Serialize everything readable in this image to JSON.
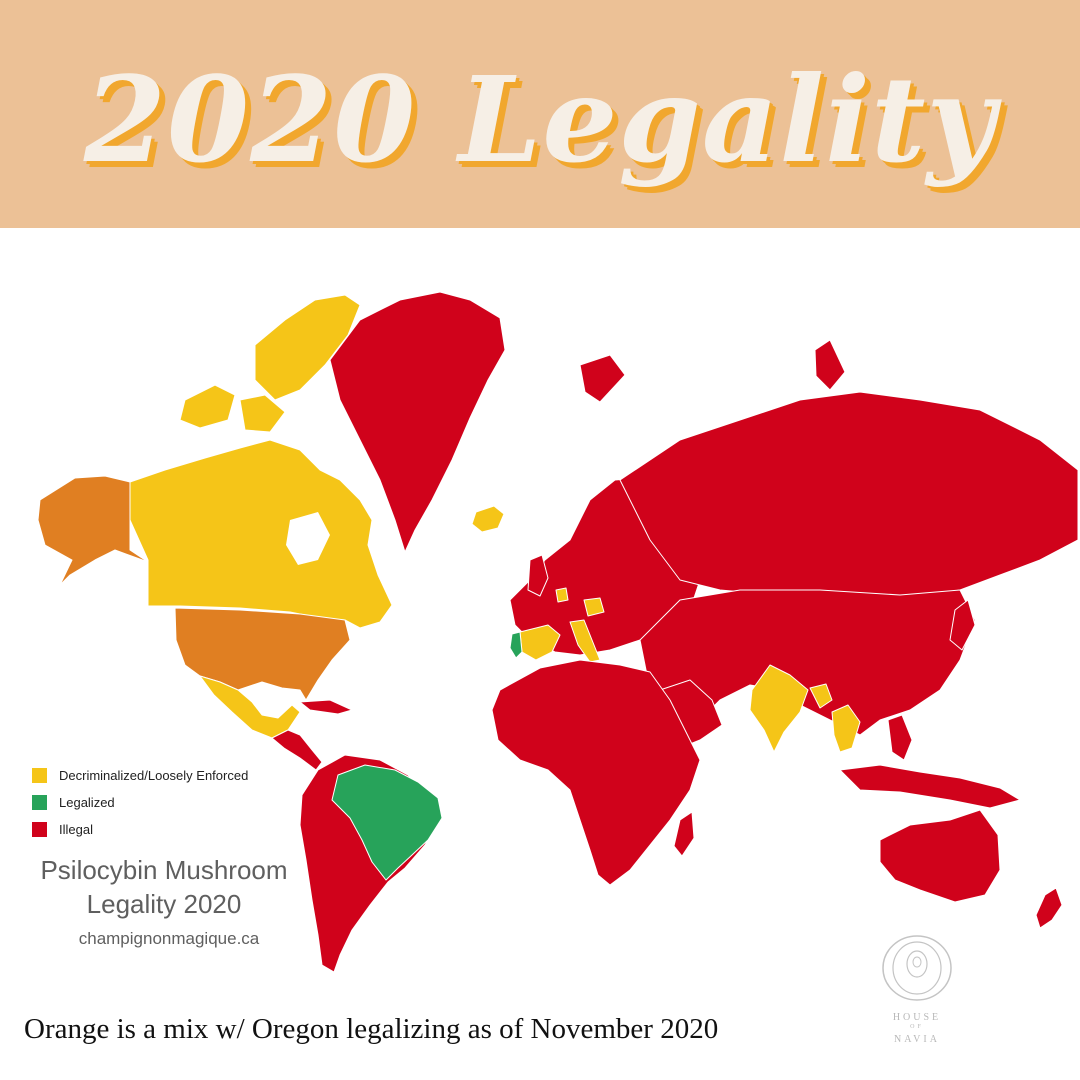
{
  "banner": {
    "title": "2020 Legality"
  },
  "map": {
    "legend": [
      {
        "label": "Decriminalized/Loosely Enforced",
        "color": "#f5c518"
      },
      {
        "label": "Legalized",
        "color": "#27a35a"
      },
      {
        "label": "Illegal",
        "color": "#d0021b"
      }
    ],
    "other_color": "#e07f22",
    "title_line1": "Psilocybin Mushroom",
    "title_line2": "Legality 2020",
    "source": "champignonmagique.ca"
  },
  "caption": "Orange is a mix w/ Oregon legalizing as of November 2020",
  "logo": {
    "line1": "HOUSE",
    "line2": "OF",
    "line3": "NAVIA"
  }
}
